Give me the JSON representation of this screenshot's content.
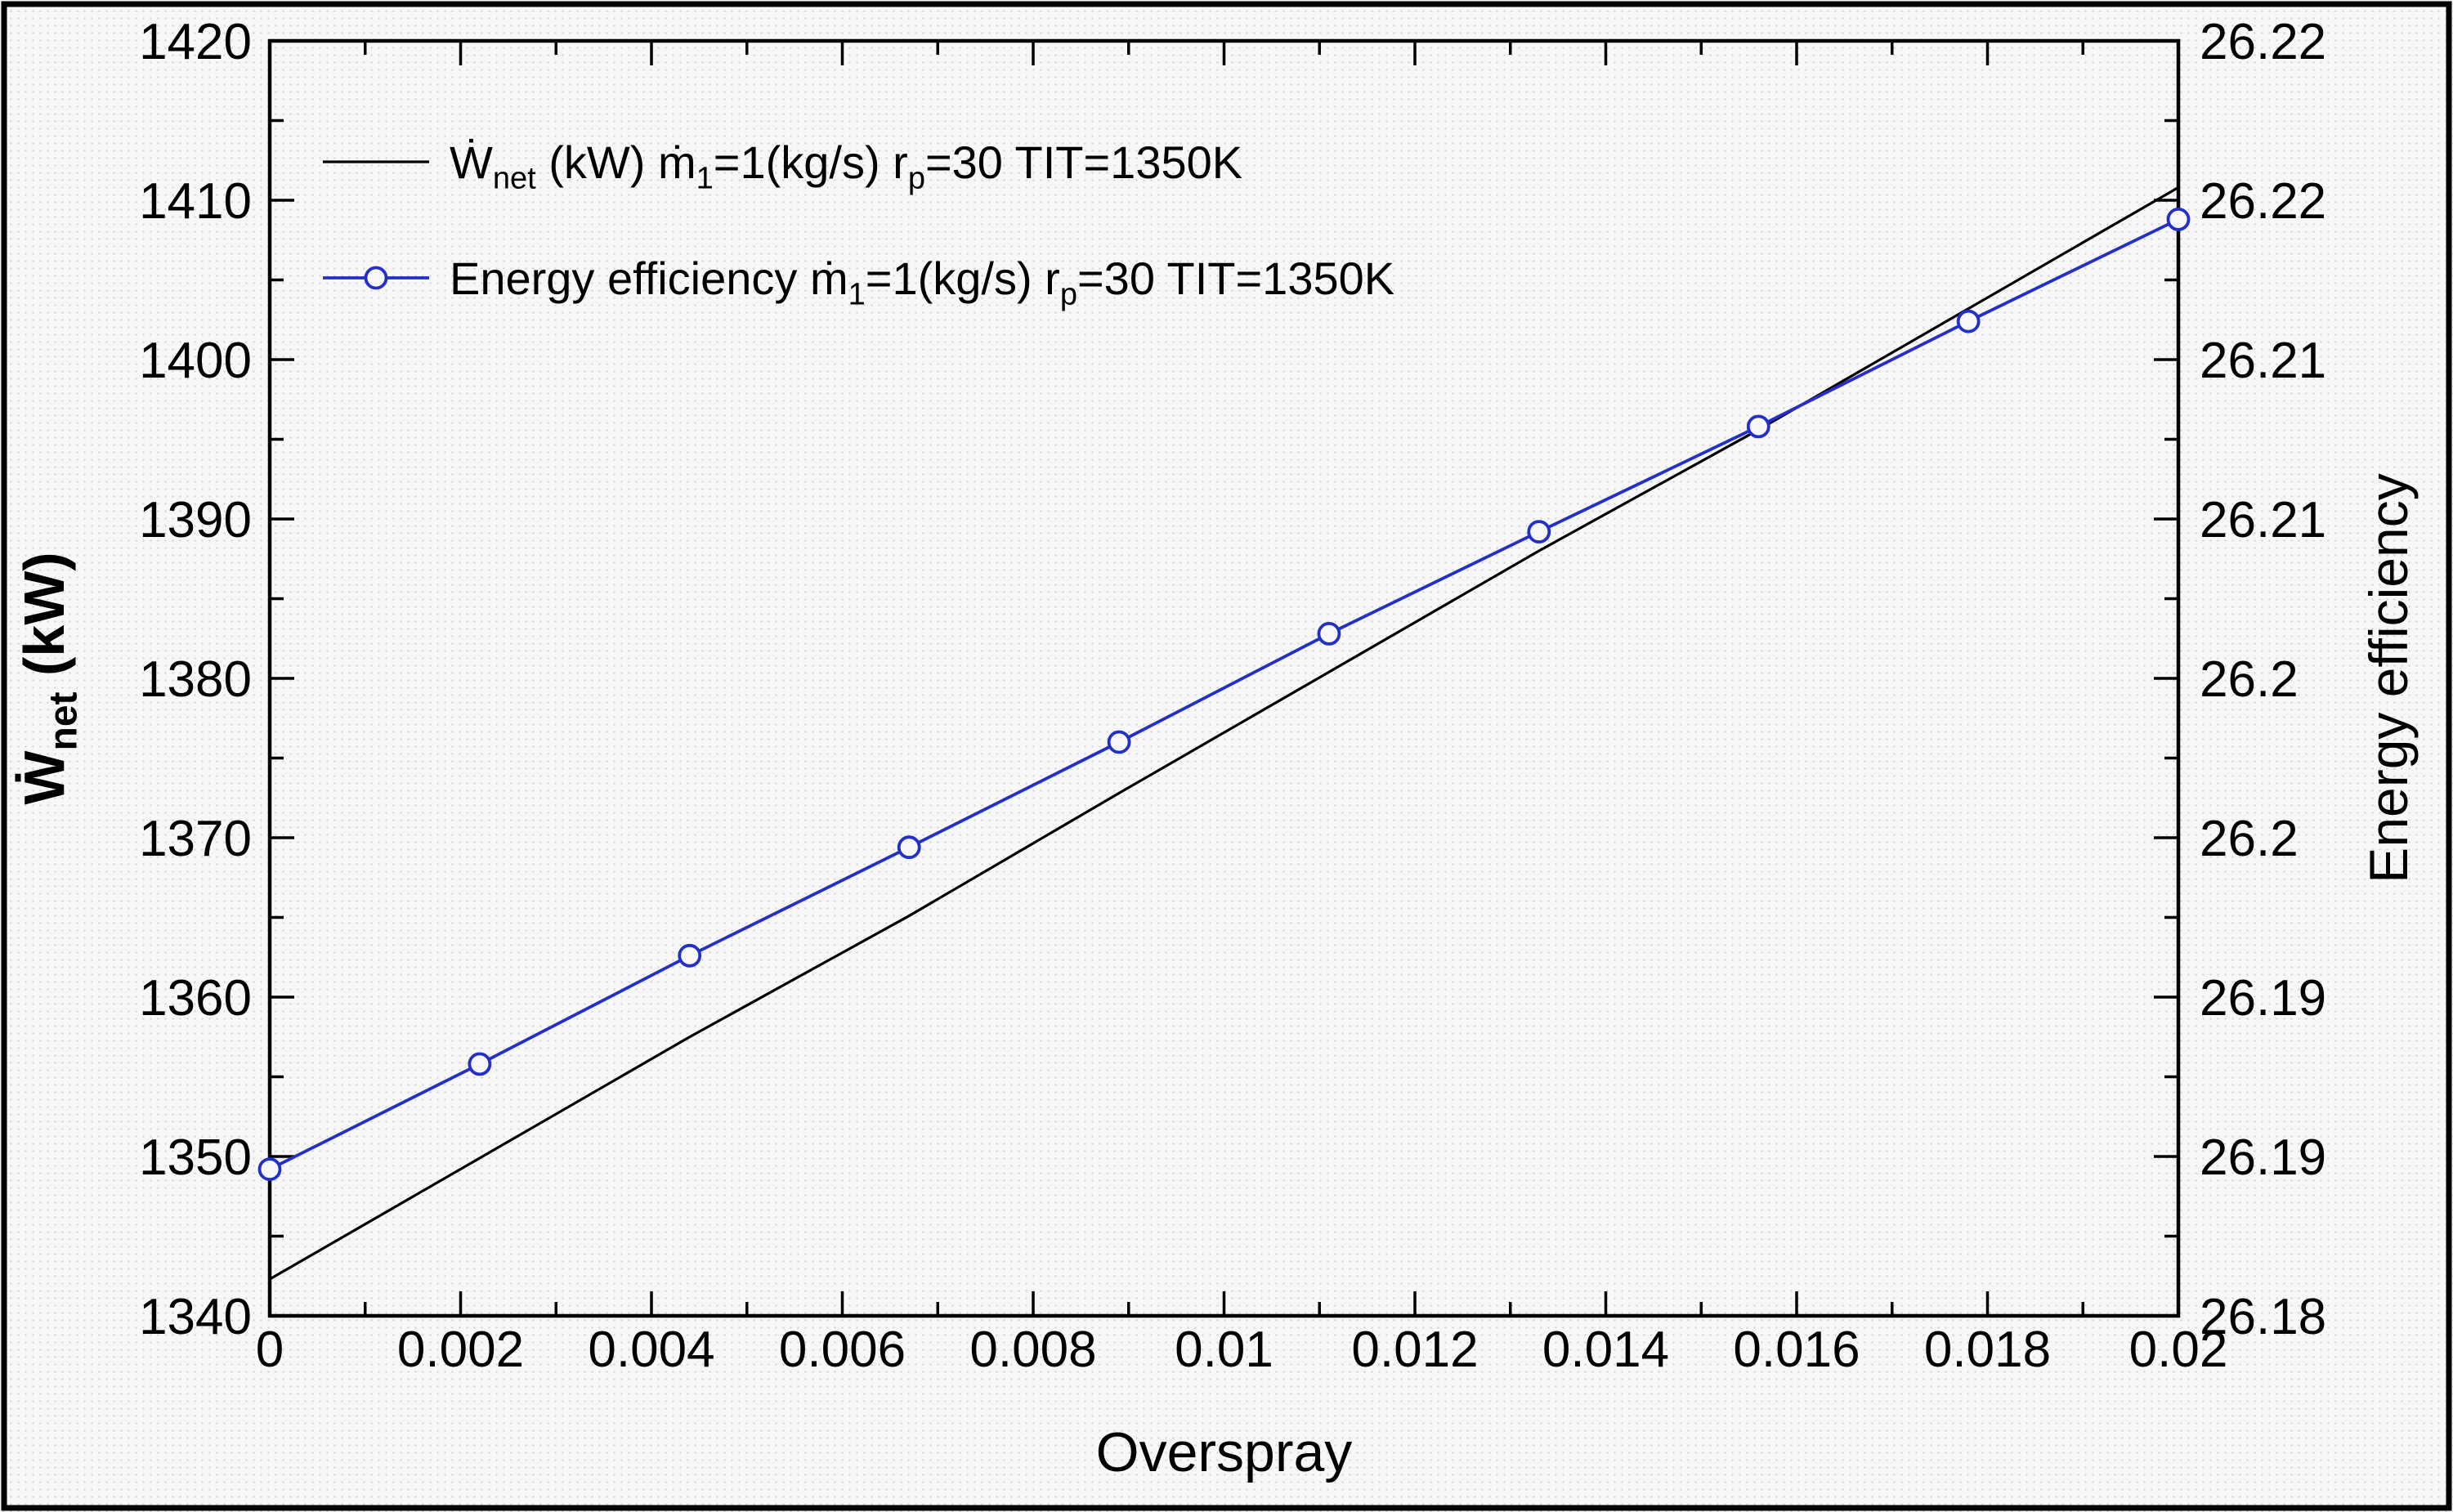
{
  "figure": {
    "border_color": "#000000",
    "background_color": "#f7f7f8",
    "dot_pattern_color": "#d7d7dd"
  },
  "chart_data": {
    "type": "line",
    "title": "",
    "grid": false,
    "legend_position": "top-left",
    "x_axis": {
      "label": "Overspray",
      "range": [
        0,
        0.02
      ],
      "tick_values": [
        0,
        0.002,
        0.004,
        0.006,
        0.008,
        0.01,
        0.012,
        0.014,
        0.016,
        0.018,
        0.02
      ],
      "tick_labels": [
        "0",
        "0.002",
        "0.004",
        "0.006",
        "0.008",
        "0.01",
        "0.012",
        "0.014",
        "0.016",
        "0.018",
        "0.02"
      ],
      "minor_step": 0.001
    },
    "y_left_axis": {
      "label": "Wnet (kW)",
      "label_segments": [
        {
          "text": "Ẇ"
        },
        {
          "text": "net",
          "sub": true
        },
        {
          "text": " (kW)"
        }
      ],
      "range": [
        1340,
        1420
      ],
      "tick_values": [
        1420,
        1410,
        1400,
        1390,
        1380,
        1370,
        1360,
        1350,
        1340
      ],
      "tick_labels": [
        "1420",
        "1410",
        "1400",
        "1390",
        "1380",
        "1370",
        "1360",
        "1350",
        "1340"
      ],
      "minor_step": 5
    },
    "y_right_axis": {
      "label": "Energy efficiency",
      "range": [
        26.18,
        26.22
      ],
      "tick_values": [
        26.22,
        26.215,
        26.21,
        26.205,
        26.2,
        26.195,
        26.19,
        26.185,
        26.18
      ],
      "tick_labels": [
        "26.22",
        "26.22",
        "26.21",
        "26.21",
        "26.2",
        "26.2",
        "26.19",
        "26.19",
        "26.18"
      ],
      "minor_step": 0.0025
    },
    "series": [
      {
        "name": "Wnet (kW) m1=1(kg/s) rp=30 TIT=1350K",
        "legend_segments": [
          {
            "text": "Ẇ"
          },
          {
            "text": "net",
            "sub": true
          },
          {
            "text": " (kW) ṁ"
          },
          {
            "text": "1",
            "sub": true
          },
          {
            "text": "=1(kg/s) r"
          },
          {
            "text": "p",
            "sub": true
          },
          {
            "text": "=30 TIT=1350K"
          }
        ],
        "axis": "left",
        "color": "#000000",
        "marker": "none",
        "x": [
          0,
          0.0022,
          0.0044,
          0.0067,
          0.0089,
          0.0111,
          0.0133,
          0.0156,
          0.0178,
          0.02
        ],
        "y": [
          1342.3,
          1349.9,
          1357.5,
          1365.1,
          1372.8,
          1380.4,
          1388.0,
          1395.6,
          1403.2,
          1410.8
        ]
      },
      {
        "name": "Energy efficiency m1=1(kg/s) rp=30 TIT=1350K",
        "legend_segments": [
          {
            "text": "Energy efficiency ṁ"
          },
          {
            "text": "1",
            "sub": true
          },
          {
            "text": "=1(kg/s) r"
          },
          {
            "text": "p",
            "sub": true
          },
          {
            "text": "=30 TIT=1350K"
          }
        ],
        "axis": "right",
        "color": "#2230c8",
        "marker": "circle",
        "marker_fill": "#f7f7f8",
        "x": [
          0,
          0.0022,
          0.0044,
          0.0067,
          0.0089,
          0.0111,
          0.0133,
          0.0156,
          0.0178,
          0.02
        ],
        "y": [
          26.1846,
          26.1879,
          26.1913,
          26.1947,
          26.198,
          26.2014,
          26.2046,
          26.2079,
          26.2112,
          26.2144
        ]
      }
    ]
  }
}
